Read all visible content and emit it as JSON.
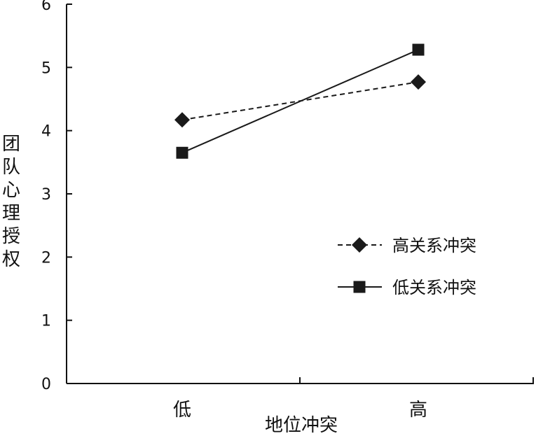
{
  "chart_data": {
    "type": "line",
    "categories": [
      "低",
      "高"
    ],
    "xlabel": "地位冲突",
    "ylabel": "团队心理授权",
    "ylim": [
      0,
      6
    ],
    "yticks": [
      "0",
      "1",
      "2",
      "3",
      "4",
      "5",
      "6"
    ],
    "grid": false,
    "legend_position": "right",
    "series": [
      {
        "name": "高关系冲突",
        "values": [
          4.17,
          4.77
        ],
        "line_style": "dashed",
        "marker": "diamond",
        "color": "#1a1a1a"
      },
      {
        "name": "低关系冲突",
        "values": [
          3.65,
          5.28
        ],
        "line_style": "solid",
        "marker": "square",
        "color": "#1a1a1a"
      }
    ]
  }
}
